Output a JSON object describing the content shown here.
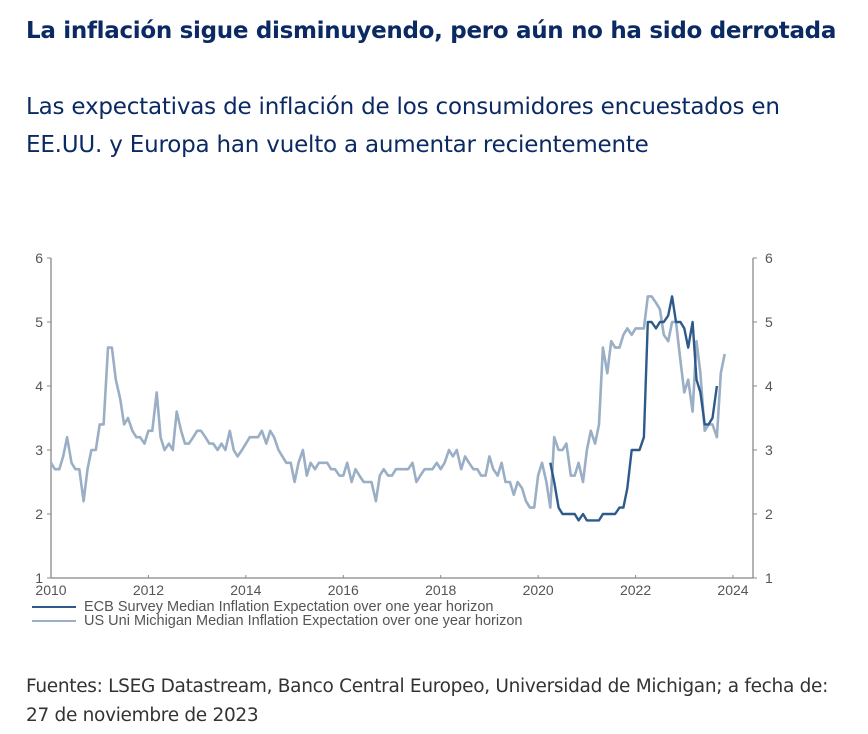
{
  "header": {
    "title": "La inflación sigue disminuyendo, pero aún no ha sido derrotada",
    "subtitle": "Las expectativas de inflación de los consumidores encuestados en EE.UU. y Europa han vuelto a aumentar recientemente"
  },
  "footer": {
    "source": "Fuentes: LSEG Datastream, Banco Central Europeo, Universidad de Michigan; a fecha de: 27 de noviembre de 2023"
  },
  "chart_data": {
    "type": "line",
    "title": "",
    "xlabel": "",
    "ylabel": "",
    "xlim": [
      2010,
      2024.6
    ],
    "ylim": [
      1,
      6
    ],
    "x_ticks": [
      "2010",
      "2012",
      "2014",
      "2016",
      "2018",
      "2020",
      "2022",
      "2024"
    ],
    "y_ticks_left": [
      "1",
      "2",
      "3",
      "4",
      "5",
      "6"
    ],
    "y_ticks_right": [
      "1",
      "2",
      "3",
      "4",
      "5",
      "6"
    ],
    "grid": false,
    "legend_position": "bottom-left",
    "series": [
      {
        "name": "ECB Survey Median Inflation Expectation over one year horizon",
        "color": "#2e5a8a",
        "points": [
          [
            2020.25,
            2.8
          ],
          [
            2020.33,
            2.5
          ],
          [
            2020.42,
            2.1
          ],
          [
            2020.5,
            2.0
          ],
          [
            2020.58,
            2.0
          ],
          [
            2020.67,
            2.0
          ],
          [
            2020.75,
            2.0
          ],
          [
            2020.83,
            1.9
          ],
          [
            2020.92,
            2.0
          ],
          [
            2021.0,
            1.9
          ],
          [
            2021.08,
            1.9
          ],
          [
            2021.17,
            1.9
          ],
          [
            2021.25,
            1.9
          ],
          [
            2021.33,
            2.0
          ],
          [
            2021.42,
            2.0
          ],
          [
            2021.5,
            2.0
          ],
          [
            2021.58,
            2.0
          ],
          [
            2021.67,
            2.1
          ],
          [
            2021.75,
            2.1
          ],
          [
            2021.83,
            2.4
          ],
          [
            2021.92,
            3.0
          ],
          [
            2022.0,
            3.0
          ],
          [
            2022.08,
            3.0
          ],
          [
            2022.17,
            3.2
          ],
          [
            2022.25,
            5.0
          ],
          [
            2022.33,
            5.0
          ],
          [
            2022.42,
            4.9
          ],
          [
            2022.5,
            5.0
          ],
          [
            2022.58,
            5.0
          ],
          [
            2022.67,
            5.1
          ],
          [
            2022.75,
            5.4
          ],
          [
            2022.83,
            5.0
          ],
          [
            2022.92,
            5.0
          ],
          [
            2023.0,
            4.9
          ],
          [
            2023.08,
            4.6
          ],
          [
            2023.17,
            5.0
          ],
          [
            2023.25,
            4.1
          ],
          [
            2023.33,
            3.9
          ],
          [
            2023.42,
            3.4
          ],
          [
            2023.5,
            3.4
          ],
          [
            2023.58,
            3.5
          ],
          [
            2023.67,
            4.0
          ]
        ]
      },
      {
        "name": "US Uni Michigan Median Inflation Expectation over one year horizon",
        "color": "#9aaec6",
        "points": [
          [
            2010.0,
            2.8
          ],
          [
            2010.08,
            2.7
          ],
          [
            2010.17,
            2.7
          ],
          [
            2010.25,
            2.9
          ],
          [
            2010.33,
            3.2
          ],
          [
            2010.42,
            2.8
          ],
          [
            2010.5,
            2.7
          ],
          [
            2010.58,
            2.7
          ],
          [
            2010.67,
            2.2
          ],
          [
            2010.75,
            2.7
          ],
          [
            2010.83,
            3.0
          ],
          [
            2010.92,
            3.0
          ],
          [
            2011.0,
            3.4
          ],
          [
            2011.08,
            3.4
          ],
          [
            2011.17,
            4.6
          ],
          [
            2011.25,
            4.6
          ],
          [
            2011.33,
            4.1
          ],
          [
            2011.42,
            3.8
          ],
          [
            2011.5,
            3.4
          ],
          [
            2011.58,
            3.5
          ],
          [
            2011.67,
            3.3
          ],
          [
            2011.75,
            3.2
          ],
          [
            2011.83,
            3.2
          ],
          [
            2011.92,
            3.1
          ],
          [
            2012.0,
            3.3
          ],
          [
            2012.08,
            3.3
          ],
          [
            2012.17,
            3.9
          ],
          [
            2012.25,
            3.2
          ],
          [
            2012.33,
            3.0
          ],
          [
            2012.42,
            3.1
          ],
          [
            2012.5,
            3.0
          ],
          [
            2012.58,
            3.6
          ],
          [
            2012.67,
            3.3
          ],
          [
            2012.75,
            3.1
          ],
          [
            2012.83,
            3.1
          ],
          [
            2012.92,
            3.2
          ],
          [
            2013.0,
            3.3
          ],
          [
            2013.08,
            3.3
          ],
          [
            2013.17,
            3.2
          ],
          [
            2013.25,
            3.1
          ],
          [
            2013.33,
            3.1
          ],
          [
            2013.42,
            3.0
          ],
          [
            2013.5,
            3.1
          ],
          [
            2013.58,
            3.0
          ],
          [
            2013.67,
            3.3
          ],
          [
            2013.75,
            3.0
          ],
          [
            2013.83,
            2.9
          ],
          [
            2013.92,
            3.0
          ],
          [
            2014.0,
            3.1
          ],
          [
            2014.08,
            3.2
          ],
          [
            2014.17,
            3.2
          ],
          [
            2014.25,
            3.2
          ],
          [
            2014.33,
            3.3
          ],
          [
            2014.42,
            3.1
          ],
          [
            2014.5,
            3.3
          ],
          [
            2014.58,
            3.2
          ],
          [
            2014.67,
            3.0
          ],
          [
            2014.75,
            2.9
          ],
          [
            2014.83,
            2.8
          ],
          [
            2014.92,
            2.8
          ],
          [
            2015.0,
            2.5
          ],
          [
            2015.08,
            2.8
          ],
          [
            2015.17,
            3.0
          ],
          [
            2015.25,
            2.6
          ],
          [
            2015.33,
            2.8
          ],
          [
            2015.42,
            2.7
          ],
          [
            2015.5,
            2.8
          ],
          [
            2015.58,
            2.8
          ],
          [
            2015.67,
            2.8
          ],
          [
            2015.75,
            2.7
          ],
          [
            2015.83,
            2.7
          ],
          [
            2015.92,
            2.6
          ],
          [
            2016.0,
            2.6
          ],
          [
            2016.08,
            2.8
          ],
          [
            2016.17,
            2.5
          ],
          [
            2016.25,
            2.7
          ],
          [
            2016.33,
            2.6
          ],
          [
            2016.42,
            2.5
          ],
          [
            2016.5,
            2.5
          ],
          [
            2016.58,
            2.5
          ],
          [
            2016.67,
            2.2
          ],
          [
            2016.75,
            2.6
          ],
          [
            2016.83,
            2.7
          ],
          [
            2016.92,
            2.6
          ],
          [
            2017.0,
            2.6
          ],
          [
            2017.08,
            2.7
          ],
          [
            2017.17,
            2.7
          ],
          [
            2017.25,
            2.7
          ],
          [
            2017.33,
            2.7
          ],
          [
            2017.42,
            2.8
          ],
          [
            2017.5,
            2.5
          ],
          [
            2017.58,
            2.6
          ],
          [
            2017.67,
            2.7
          ],
          [
            2017.75,
            2.7
          ],
          [
            2017.83,
            2.7
          ],
          [
            2017.92,
            2.8
          ],
          [
            2018.0,
            2.7
          ],
          [
            2018.08,
            2.8
          ],
          [
            2018.17,
            3.0
          ],
          [
            2018.25,
            2.9
          ],
          [
            2018.33,
            3.0
          ],
          [
            2018.42,
            2.7
          ],
          [
            2018.5,
            2.9
          ],
          [
            2018.58,
            2.8
          ],
          [
            2018.67,
            2.7
          ],
          [
            2018.75,
            2.7
          ],
          [
            2018.83,
            2.6
          ],
          [
            2018.92,
            2.6
          ],
          [
            2019.0,
            2.9
          ],
          [
            2019.08,
            2.7
          ],
          [
            2019.17,
            2.6
          ],
          [
            2019.25,
            2.8
          ],
          [
            2019.33,
            2.5
          ],
          [
            2019.42,
            2.5
          ],
          [
            2019.5,
            2.3
          ],
          [
            2019.58,
            2.5
          ],
          [
            2019.67,
            2.4
          ],
          [
            2019.75,
            2.2
          ],
          [
            2019.83,
            2.1
          ],
          [
            2019.92,
            2.1
          ],
          [
            2020.0,
            2.6
          ],
          [
            2020.08,
            2.8
          ],
          [
            2020.17,
            2.5
          ],
          [
            2020.25,
            2.1
          ],
          [
            2020.33,
            3.2
          ],
          [
            2020.42,
            3.0
          ],
          [
            2020.5,
            3.0
          ],
          [
            2020.58,
            3.1
          ],
          [
            2020.67,
            2.6
          ],
          [
            2020.75,
            2.6
          ],
          [
            2020.83,
            2.8
          ],
          [
            2020.92,
            2.5
          ],
          [
            2021.0,
            3.0
          ],
          [
            2021.08,
            3.3
          ],
          [
            2021.17,
            3.1
          ],
          [
            2021.25,
            3.4
          ],
          [
            2021.33,
            4.6
          ],
          [
            2021.42,
            4.2
          ],
          [
            2021.5,
            4.7
          ],
          [
            2021.58,
            4.6
          ],
          [
            2021.67,
            4.6
          ],
          [
            2021.75,
            4.8
          ],
          [
            2021.83,
            4.9
          ],
          [
            2021.92,
            4.8
          ],
          [
            2022.0,
            4.9
          ],
          [
            2022.08,
            4.9
          ],
          [
            2022.17,
            4.9
          ],
          [
            2022.25,
            5.4
          ],
          [
            2022.33,
            5.4
          ],
          [
            2022.42,
            5.3
          ],
          [
            2022.5,
            5.2
          ],
          [
            2022.58,
            4.8
          ],
          [
            2022.67,
            4.7
          ],
          [
            2022.75,
            5.0
          ],
          [
            2022.83,
            5.0
          ],
          [
            2022.92,
            4.4
          ],
          [
            2023.0,
            3.9
          ],
          [
            2023.08,
            4.1
          ],
          [
            2023.17,
            3.6
          ],
          [
            2023.25,
            4.7
          ],
          [
            2023.33,
            4.2
          ],
          [
            2023.42,
            3.3
          ],
          [
            2023.5,
            3.4
          ],
          [
            2023.58,
            3.4
          ],
          [
            2023.67,
            3.2
          ],
          [
            2023.75,
            4.2
          ],
          [
            2023.83,
            4.5
          ]
        ]
      }
    ]
  }
}
